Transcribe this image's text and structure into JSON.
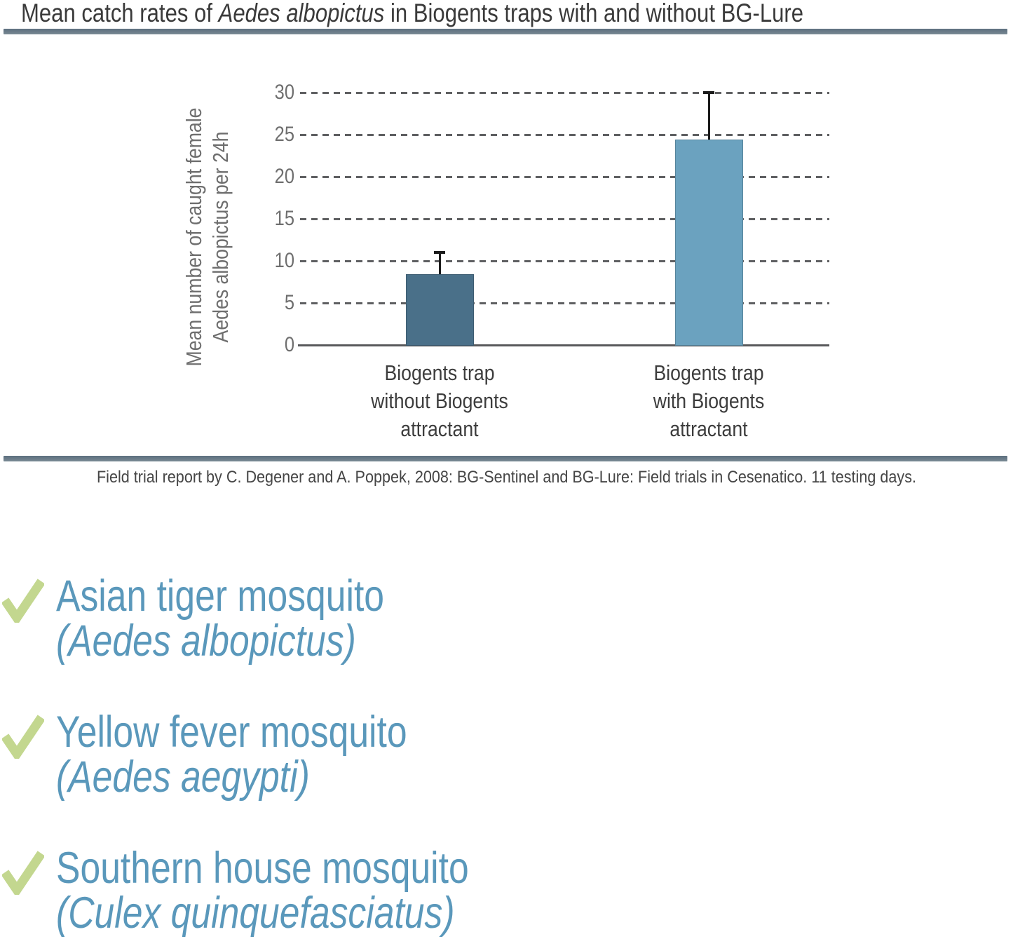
{
  "page": {
    "title": {
      "pre": "Mean catch rates of ",
      "italic": "Aedes albopictus",
      "post": " in Biogents traps with and without BG-Lure"
    },
    "caption": "Field trial report by C. Degener and A. Poppek, 2008: BG-Sentinel and BG-Lure: Field trials in Cesenatico. 11 testing days."
  },
  "chart_data": {
    "type": "bar",
    "title": "Mean catch rates of Aedes albopictus in Biogents traps with and without BG-Lure",
    "ylabel": "Mean number of caught female Aedes albopictus per 24h",
    "ylabel_lines": [
      "Mean number of caught female",
      "Aedes albopictus per 24h"
    ],
    "categories": [
      "Biogents trap\nwithout Biogents\nattractant",
      "Biogents trap\nwith Biogents\nattractant"
    ],
    "values": [
      8.5,
      24.5
    ],
    "error_upper": [
      11.2,
      30.2
    ],
    "yticks": [
      0,
      5,
      10,
      15,
      20,
      25,
      30
    ],
    "ylim": [
      0,
      32
    ],
    "grid": "horizontal-dashed",
    "legend": "none",
    "bar_colors": [
      "#4a7089",
      "#6ba2bf"
    ],
    "xlabel": ""
  },
  "checklist": {
    "items": [
      {
        "common_name": "Asian tiger mosquito",
        "latin_name": "(Aedes albopictus)"
      },
      {
        "common_name": "Yellow fever mosquito",
        "latin_name": "(Aedes aegypti)"
      },
      {
        "common_name": "Southern house mosquito",
        "latin_name": "(Culex quinquefasciatus)"
      }
    ]
  },
  "colors": {
    "divider": "#6b7c89",
    "bar_without_lure": "#4a7089",
    "bar_with_lure": "#6ba2bf",
    "list_text": "#5a98bb",
    "check_green": "#c3d78f",
    "error_bar": "#1b1b1b",
    "grid": "#5f6062"
  }
}
